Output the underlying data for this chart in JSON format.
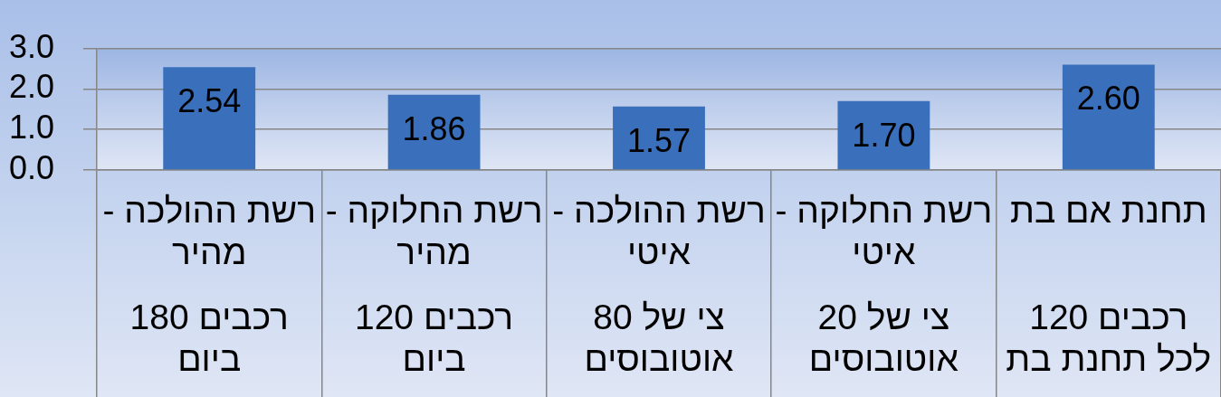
{
  "chart_data": {
    "type": "bar",
    "categories": [
      "רשת ההולכה - מהיר\n180 רכבים ביום",
      "רשת החלוקה - מהיר\n120 רכבים ביום",
      "רשת ההולכה - איטי\nצי של 80 אוטובוסים",
      "רשת החלוקה - איטי\nצי של 20 אוטובוסים",
      "תחנת אם בת\n120 רכבים לכל תחנת בת"
    ],
    "values": [
      2.54,
      1.86,
      1.57,
      1.7,
      2.6
    ],
    "value_labels": [
      "2.54",
      "1.86",
      "1.57",
      "1.70",
      "2.60"
    ],
    "color": "#3a70bb",
    "ylim": [
      0,
      3
    ],
    "yticks": [
      {
        "value": 0,
        "label": "0.0"
      },
      {
        "value": 1,
        "label": "1.0"
      },
      {
        "value": 2,
        "label": "2.0"
      },
      {
        "value": 3,
        "label": "3.0"
      }
    ],
    "grid": "y"
  }
}
